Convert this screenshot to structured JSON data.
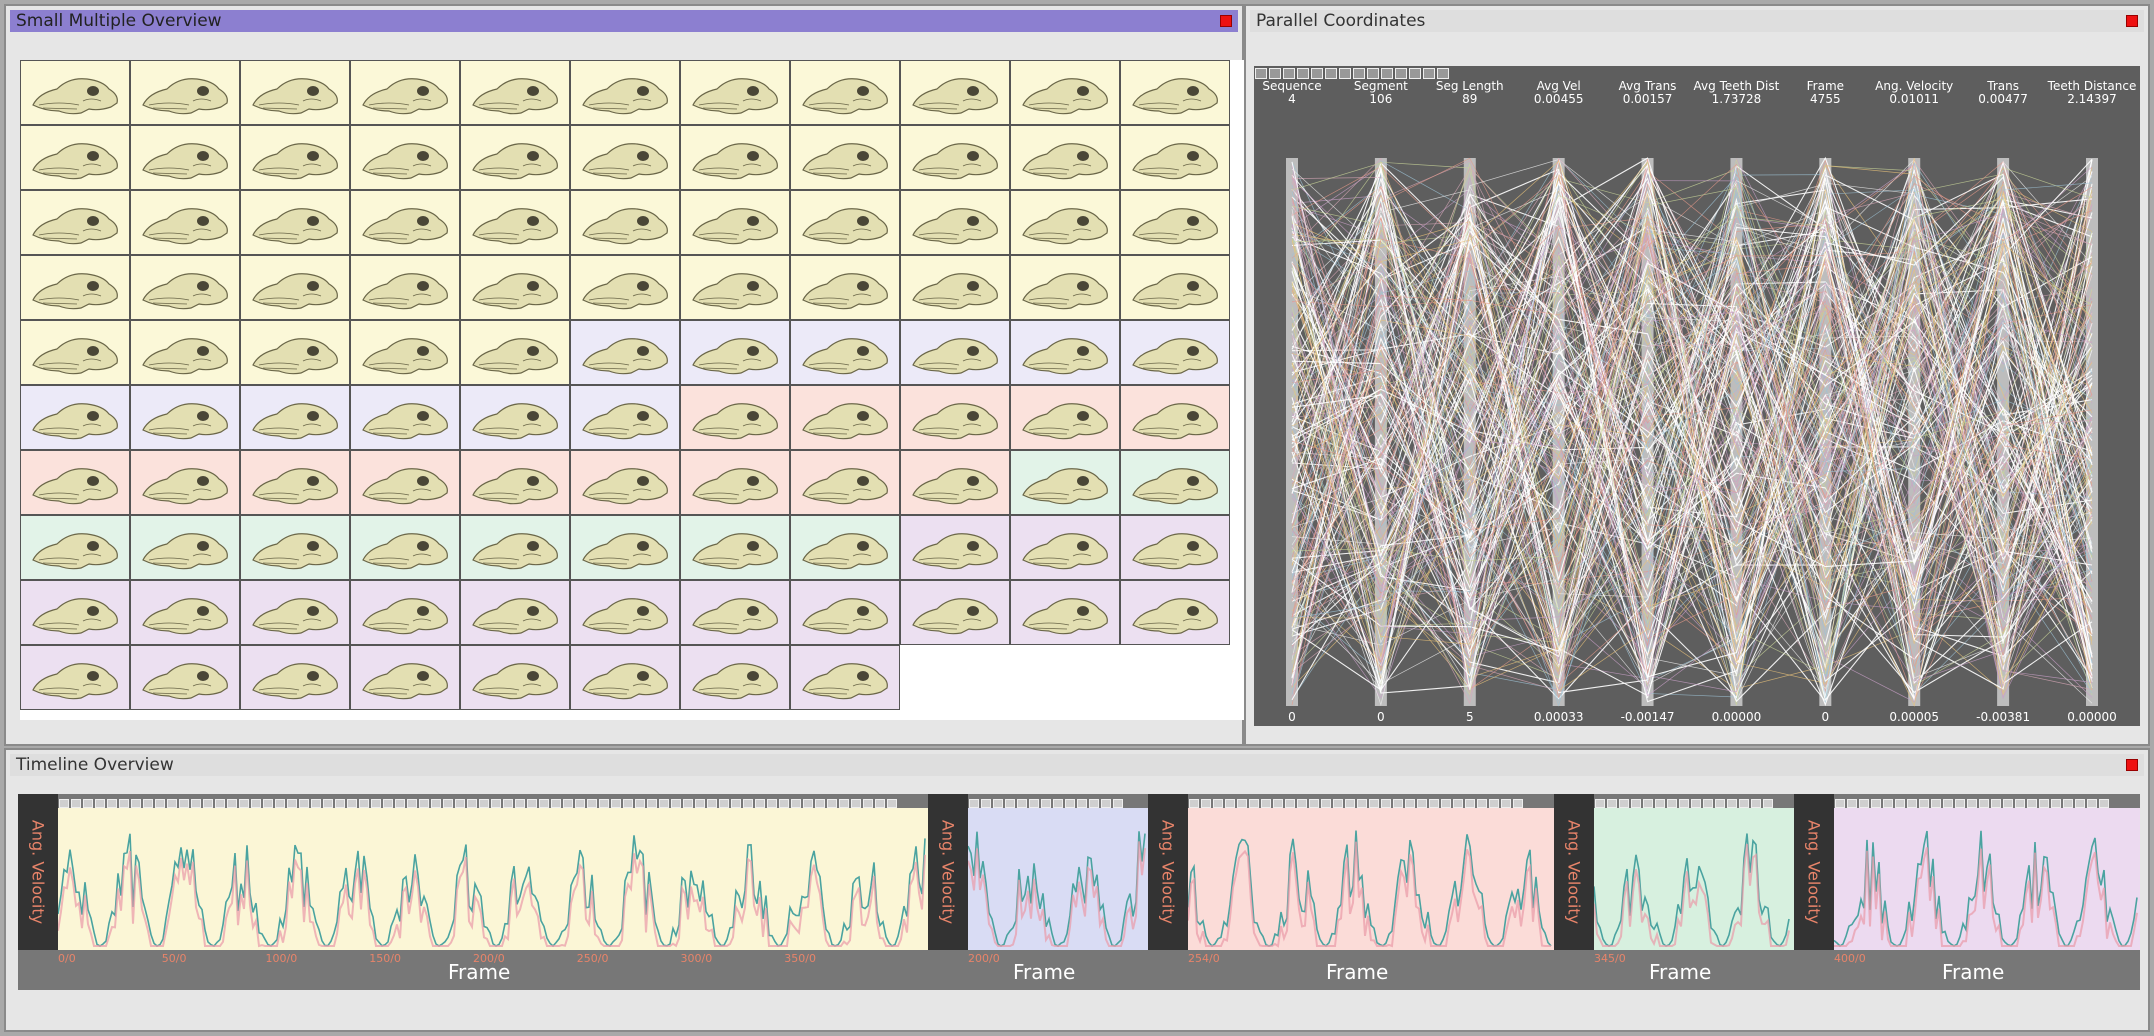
{
  "windows": {
    "small_multiples": {
      "title": "Small Multiple Overview"
    },
    "parallel_coords": {
      "title": "Parallel Coordinates"
    },
    "timeline": {
      "title": "Timeline Overview"
    }
  },
  "grid": {
    "columns": 11,
    "rows": [
      [
        "y",
        "y",
        "y",
        "y",
        "y",
        "y",
        "y",
        "y",
        "y",
        "y",
        "y"
      ],
      [
        "y",
        "y",
        "y",
        "y",
        "y",
        "y",
        "y",
        "y",
        "y",
        "y",
        "y"
      ],
      [
        "y",
        "y",
        "y",
        "y",
        "y",
        "y",
        "y",
        "y",
        "y",
        "y",
        "y"
      ],
      [
        "y",
        "y",
        "y",
        "y",
        "y",
        "y",
        "y",
        "y",
        "y",
        "y",
        "y"
      ],
      [
        "y",
        "y",
        "y",
        "y",
        "y",
        "b",
        "b",
        "b",
        "b",
        "b",
        "b"
      ],
      [
        "b",
        "b",
        "b",
        "b",
        "b",
        "b",
        "p",
        "p",
        "p",
        "p",
        "p"
      ],
      [
        "p",
        "p",
        "p",
        "p",
        "p",
        "p",
        "p",
        "p",
        "p",
        "g",
        "g"
      ],
      [
        "g",
        "g",
        "g",
        "g",
        "g",
        "g",
        "g",
        "g",
        "v",
        "v",
        "v"
      ],
      [
        "v",
        "v",
        "v",
        "v",
        "v",
        "v",
        "v",
        "v",
        "v",
        "v",
        "v"
      ],
      [
        "v",
        "v",
        "v",
        "v",
        "v",
        "v",
        "v",
        "v"
      ]
    ],
    "colors": {
      "y": "#fbf8d8",
      "b": "#eceaf8",
      "p": "#fbe2dc",
      "g": "#e2f3e8",
      "v": "#ece0f1"
    }
  },
  "axes": [
    {
      "name": "Sequence",
      "max": "4",
      "min": "0"
    },
    {
      "name": "Segment",
      "max": "106",
      "min": "0"
    },
    {
      "name": "Seg Length",
      "max": "89",
      "min": "5"
    },
    {
      "name": "Avg Vel",
      "max": "0.00455",
      "min": "0.00033"
    },
    {
      "name": "Avg Trans",
      "max": "0.00157",
      "min": "-0.00147"
    },
    {
      "name": "Avg Teeth Dist",
      "max": "1.73728",
      "min": "0.00000"
    },
    {
      "name": "Frame",
      "max": "4755",
      "min": "0"
    },
    {
      "name": "Ang. Velocity",
      "max": "0.01011",
      "min": "0.00005"
    },
    {
      "name": "Trans",
      "max": "0.00477",
      "min": "-0.00381"
    },
    {
      "name": "Teeth Distance",
      "max": "2.14397",
      "min": "0.00000"
    }
  ],
  "timeline": {
    "ylabel": "Ang. Velocity",
    "xlabel": "Frame",
    "segments": [
      {
        "color": "#fbf6d6",
        "ticks": [
          "0/0",
          "50/0",
          "100/0",
          "150/0",
          "200/0",
          "250/0",
          "300/0",
          "350/0"
        ]
      },
      {
        "color": "#d9dcf4",
        "ticks": [
          "200/0"
        ]
      },
      {
        "color": "#fbdcd8",
        "ticks": [
          "254/0"
        ]
      },
      {
        "color": "#d7f0df",
        "ticks": [
          "345/0"
        ]
      },
      {
        "color": "#ecdaf0",
        "ticks": [
          "400/0"
        ]
      }
    ]
  }
}
